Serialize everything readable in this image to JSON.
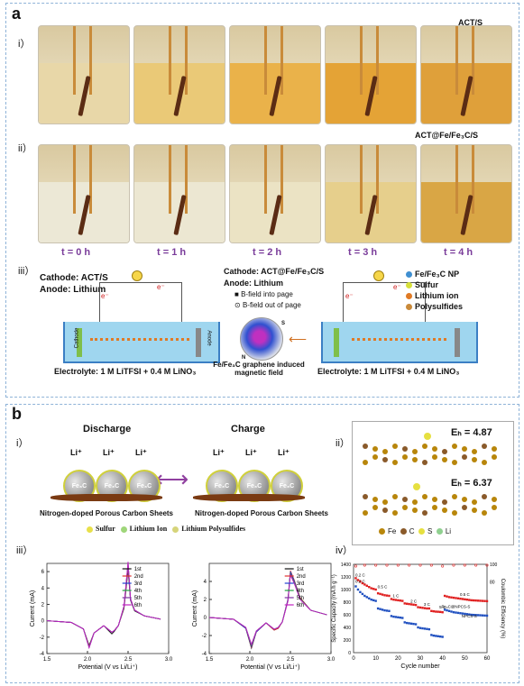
{
  "panel_a": {
    "label": "a",
    "row_i": {
      "label": "i）",
      "title": "ACT/S"
    },
    "row_ii": {
      "label": "ii）",
      "title": "ACT@Fe/Fe₃C/S"
    },
    "times": [
      "t = 0 h",
      "t = 1 h",
      "t = 2 h",
      "t = 3 h",
      "t = 4 h"
    ],
    "colors_i": [
      "#e8d7a8",
      "#eac977",
      "#eab24a",
      "#e4a336",
      "#dfa03a"
    ],
    "colors_ii": [
      "#ece8d6",
      "#ece7d2",
      "#ebe3c4",
      "#e6cf8c",
      "#d9a645"
    ],
    "row_iii": {
      "label": "iii）",
      "left_cathode": "Cathode: ACT/S",
      "left_anode": "Anode: Lithium",
      "left_electrolyte": "Electrolyte: 1 M LiTFSI + 0.4 M LiNO₃",
      "mid_cathode": "Cathode: ACT@Fe/Fe₃C/S",
      "mid_anode": "Anode: Lithium",
      "bfield_in": "B-field into page",
      "bfield_out": "B-field out of page",
      "caption": "Fe/Fe₃C graphene induced magnetic field",
      "right_electrolyte": "Electrolyte: 1 M LiTFSI + 0.4 M LiNO₃",
      "legend": [
        "Fe/Fe₃C NP",
        "Sulfur",
        "Lithium ion",
        "Polysulfides"
      ],
      "legend_colors": [
        "#3f8fd1",
        "#d7e03a",
        "#e07a25",
        "#c98a3a"
      ],
      "electron": "e⁻",
      "cathode_word": "Cathode",
      "anode_word": "Anode"
    }
  },
  "panel_b": {
    "label": "b",
    "row_i": {
      "label": "i）",
      "discharge": "Discharge",
      "charge": "Charge",
      "li": "Li⁺",
      "fe3c": "Fe₃C",
      "sheets": "Nitrogen-doped Porous Carbon Sheets",
      "legend": [
        "Sulfur",
        "Lithium Ion",
        "Lithium Polysulfides"
      ]
    },
    "row_ii": {
      "label": "ii）",
      "eb1": "Eₕ = 4.87",
      "eb2": "Eₕ = 6.37",
      "legend": [
        "Fe",
        "C",
        "S",
        "Li"
      ]
    },
    "row_iii": {
      "label": "iii）"
    },
    "row_iv": {
      "label": "iv）"
    }
  },
  "chart_data": [
    {
      "type": "line",
      "title": "",
      "xlabel": "Potential (V vs Li/Li⁺)",
      "ylabel": "Current (mA)",
      "xlim": [
        1.5,
        3.0
      ],
      "ylim": [
        -4,
        7
      ],
      "xticks": [
        "1.5",
        "2.0",
        "2.5",
        "3.0"
      ],
      "yticks": [
        "-4",
        "-2",
        "0",
        "2",
        "4",
        "6"
      ],
      "legend": [
        "1st",
        "2nd",
        "3rd",
        "4th",
        "5th",
        "6th"
      ],
      "series_colors": [
        "#111111",
        "#e03030",
        "#2040d0",
        "#20a040",
        "#7a2fa0",
        "#c020c0"
      ],
      "x": [
        1.5,
        1.8,
        1.95,
        2.02,
        2.08,
        2.2,
        2.3,
        2.33,
        2.38,
        2.45,
        2.5,
        2.53,
        2.58,
        2.7,
        2.9
      ],
      "series": [
        {
          "name": "1st",
          "values": [
            0,
            -0.2,
            -1.0,
            -3.0,
            -1.5,
            -0.6,
            -1.6,
            -1.3,
            -0.6,
            1.5,
            6.2,
            2.5,
            1.2,
            0.6,
            0.2
          ]
        },
        {
          "name": "2nd",
          "values": [
            0,
            -0.2,
            -1.0,
            -3.1,
            -1.5,
            -0.6,
            -1.4,
            -1.2,
            -0.6,
            1.6,
            6.5,
            2.6,
            1.3,
            0.6,
            0.2
          ]
        },
        {
          "name": "3rd",
          "values": [
            0,
            -0.2,
            -1.0,
            -3.2,
            -1.5,
            -0.6,
            -1.4,
            -1.2,
            -0.6,
            1.7,
            6.8,
            2.6,
            1.3,
            0.6,
            0.2
          ]
        },
        {
          "name": "4th",
          "values": [
            0,
            -0.2,
            -1.0,
            -3.2,
            -1.5,
            -0.6,
            -1.4,
            -1.2,
            -0.6,
            1.7,
            7.0,
            2.7,
            1.3,
            0.6,
            0.2
          ]
        },
        {
          "name": "5th",
          "values": [
            0,
            -0.2,
            -1.0,
            -3.3,
            -1.5,
            -0.6,
            -1.4,
            -1.2,
            -0.6,
            1.8,
            7.1,
            2.7,
            1.3,
            0.6,
            0.2
          ]
        },
        {
          "name": "6th",
          "values": [
            0,
            -0.2,
            -1.0,
            -3.3,
            -1.5,
            -0.6,
            -1.4,
            -1.2,
            -0.6,
            1.8,
            7.2,
            2.7,
            1.3,
            0.6,
            0.2
          ]
        }
      ]
    },
    {
      "type": "line",
      "title": "",
      "xlabel": "Potential (V vs Li/Li⁺)",
      "ylabel": "Current (mA)",
      "xlim": [
        1.5,
        3.0
      ],
      "ylim": [
        -4,
        6
      ],
      "xticks": [
        "1.5",
        "2.0",
        "2.5",
        "3.0"
      ],
      "yticks": [
        "-4",
        "-2",
        "0",
        "2",
        "4"
      ],
      "legend": [
        "1st",
        "2nd",
        "3rd",
        "4th",
        "5th",
        "6th"
      ],
      "series_colors": [
        "#111111",
        "#e03030",
        "#2040d0",
        "#20a040",
        "#7a2fa0",
        "#c020c0"
      ],
      "x": [
        1.5,
        1.8,
        1.95,
        2.02,
        2.08,
        2.2,
        2.3,
        2.35,
        2.4,
        2.47,
        2.5,
        2.55,
        2.62,
        2.75,
        2.95
      ],
      "series": [
        {
          "name": "1st",
          "values": [
            0,
            -0.2,
            -1.2,
            -3.4,
            -1.6,
            -0.6,
            -1.4,
            -1.2,
            -0.5,
            2.0,
            5.0,
            4.0,
            2.2,
            0.8,
            0.3
          ]
        },
        {
          "name": "2nd",
          "values": [
            0,
            -0.2,
            -1.2,
            -3.3,
            -1.6,
            -0.6,
            -1.4,
            -1.2,
            -0.5,
            2.0,
            5.2,
            4.1,
            2.2,
            0.8,
            0.3
          ]
        },
        {
          "name": "3rd",
          "values": [
            0,
            -0.2,
            -1.2,
            -3.2,
            -1.6,
            -0.6,
            -1.3,
            -1.1,
            -0.5,
            2.0,
            5.1,
            4.0,
            2.1,
            0.8,
            0.3
          ]
        },
        {
          "name": "4th",
          "values": [
            0,
            -0.2,
            -1.1,
            -3.1,
            -1.5,
            -0.6,
            -1.3,
            -1.1,
            -0.5,
            1.9,
            4.9,
            3.9,
            2.1,
            0.8,
            0.3
          ]
        },
        {
          "name": "5th",
          "values": [
            0,
            -0.2,
            -1.1,
            -3.0,
            -1.5,
            -0.6,
            -1.3,
            -1.1,
            -0.5,
            1.9,
            4.8,
            3.8,
            2.0,
            0.8,
            0.3
          ]
        },
        {
          "name": "6th",
          "values": [
            0,
            -0.2,
            -1.1,
            -3.0,
            -1.5,
            -0.6,
            -1.3,
            -1.1,
            -0.5,
            1.8,
            4.7,
            3.7,
            2.0,
            0.8,
            0.3
          ]
        }
      ]
    },
    {
      "type": "scatter",
      "title": "",
      "xlabel": "Cycle number",
      "ylabel": "Specific Capacity (mA h g⁻¹)",
      "y2label": "Coulombic Efficiency (%)",
      "xlim": [
        0,
        60
      ],
      "ylim": [
        0,
        1400
      ],
      "y2lim": [
        0,
        100
      ],
      "xticks": [
        "0",
        "10",
        "20",
        "30",
        "40",
        "50",
        "60"
      ],
      "yticks": [
        "0",
        "200",
        "400",
        "600",
        "800",
        "1000",
        "1200",
        "1400"
      ],
      "y2ticks": [
        "80",
        "100"
      ],
      "rate_labels_red": [
        "0.2 C",
        "0.5 C",
        "1 C",
        "2 C",
        "3 C",
        "5 C",
        "0.5 C"
      ],
      "rate_labels_blue": [
        "0.2 C"
      ],
      "series": [
        {
          "name": "Fe₃C@NPCS-S",
          "color": "#e02020",
          "x": [
            1,
            2,
            3,
            4,
            5,
            6,
            7,
            8,
            9,
            10,
            11,
            12,
            13,
            14,
            15,
            16,
            17,
            18,
            19,
            20,
            21,
            22,
            23,
            24,
            25,
            26,
            27,
            28,
            29,
            30,
            31,
            32,
            33,
            34,
            35,
            36,
            37,
            38,
            39,
            40,
            41,
            42,
            43,
            44,
            45,
            46,
            47,
            48,
            49,
            50,
            51,
            52,
            53,
            54,
            55,
            56,
            57,
            58,
            59,
            60
          ],
          "values": [
            1180,
            1150,
            1130,
            1100,
            1080,
            1060,
            1040,
            1020,
            1010,
            1000,
            940,
            930,
            920,
            910,
            905,
            900,
            850,
            840,
            835,
            830,
            825,
            820,
            780,
            775,
            770,
            765,
            760,
            755,
            720,
            715,
            710,
            705,
            700,
            700,
            660,
            655,
            650,
            648,
            645,
            640,
            900,
            890,
            880,
            875,
            870,
            865,
            860,
            855,
            850,
            845,
            840,
            835,
            830,
            828,
            826,
            824,
            822,
            820,
            818,
            816
          ]
        },
        {
          "name": "NPCS-S",
          "color": "#2050c0",
          "x": [
            1,
            2,
            3,
            4,
            5,
            6,
            7,
            8,
            9,
            10,
            11,
            12,
            13,
            14,
            15,
            16,
            17,
            18,
            19,
            20,
            21,
            22,
            23,
            24,
            25,
            26,
            27,
            28,
            29,
            30,
            31,
            32,
            33,
            34,
            35,
            36,
            37,
            38,
            39,
            40,
            41,
            42,
            43,
            44,
            45,
            46,
            47,
            48,
            49,
            50,
            51,
            52,
            53,
            54,
            55,
            56,
            57,
            58,
            59,
            60
          ],
          "values": [
            1050,
            1000,
            960,
            930,
            900,
            880,
            860,
            840,
            830,
            820,
            700,
            690,
            680,
            670,
            665,
            660,
            580,
            570,
            565,
            560,
            555,
            550,
            480,
            470,
            465,
            460,
            455,
            450,
            400,
            390,
            385,
            380,
            375,
            370,
            280,
            270,
            265,
            260,
            255,
            250,
            680,
            670,
            660,
            650,
            640,
            635,
            630,
            625,
            620,
            615,
            610,
            605,
            600,
            598,
            596,
            594,
            592,
            590,
            588,
            586
          ]
        },
        {
          "name": "Coulombic Efficiency",
          "color": "#e02020",
          "x": [
            1,
            5,
            10,
            15,
            20,
            25,
            30,
            35,
            40,
            45,
            50,
            55,
            60
          ],
          "values": [
            98,
            99,
            99,
            99,
            99,
            99,
            99,
            99,
            98,
            99,
            99,
            99,
            99
          ]
        }
      ]
    }
  ]
}
